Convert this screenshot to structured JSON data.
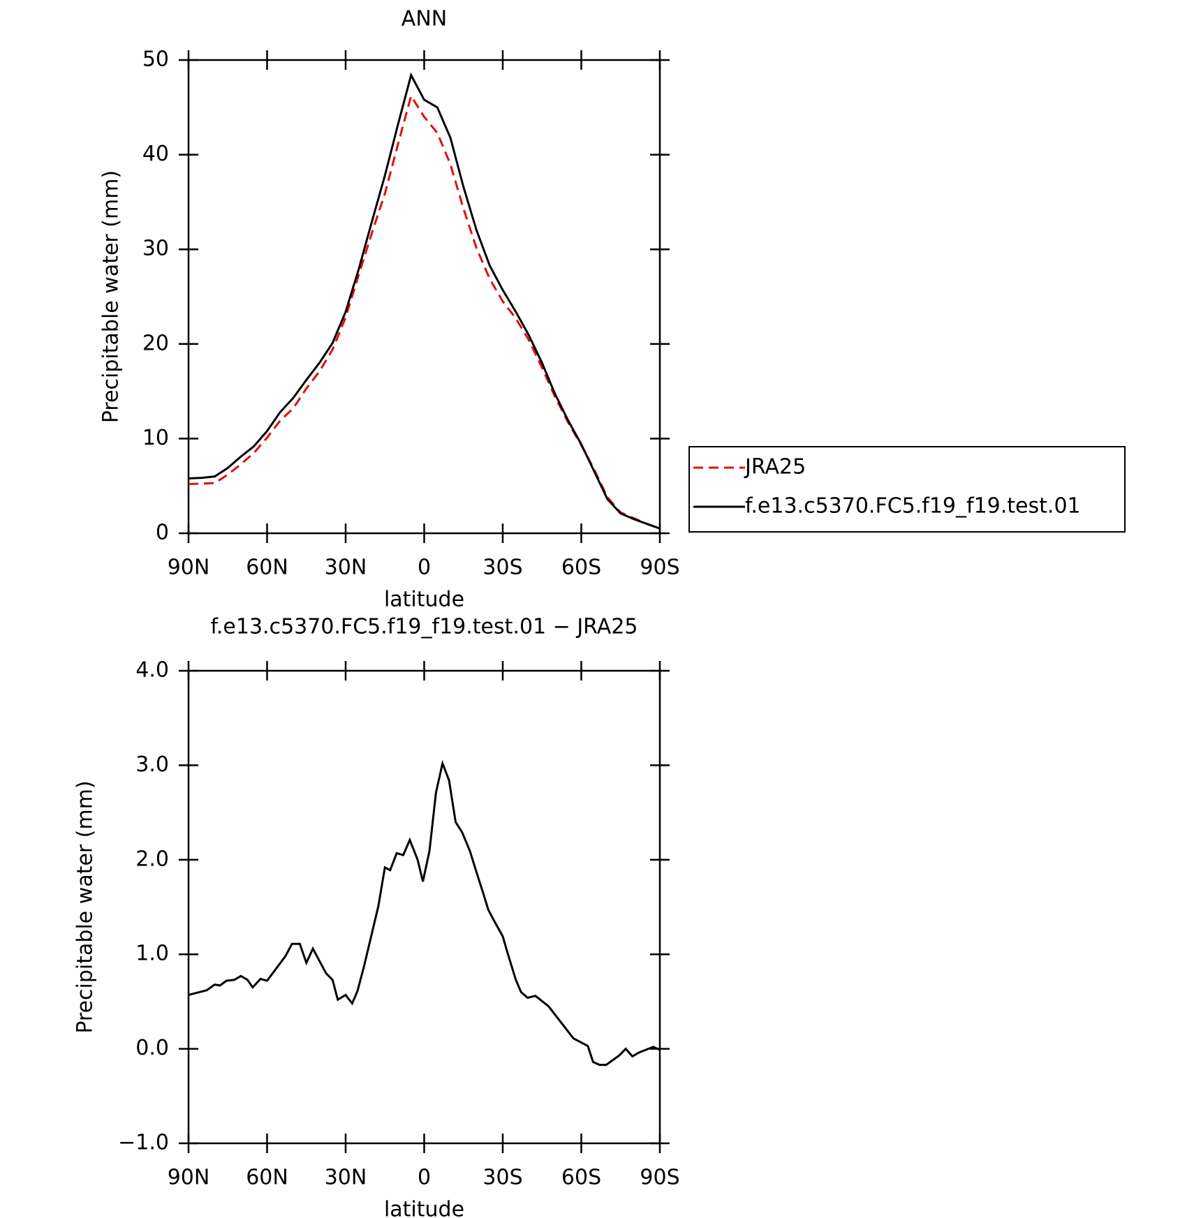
{
  "chart_data": [
    {
      "type": "line",
      "title": "ANN",
      "xlabel": "latitude",
      "ylabel": "Precipitable water (mm)",
      "x": [
        90,
        85,
        80,
        75,
        70,
        65,
        60,
        55,
        50,
        45,
        40,
        35,
        30,
        25,
        20,
        15,
        10,
        5,
        0,
        -5,
        -10,
        -15,
        -20,
        -25,
        -30,
        -35,
        -40,
        -45,
        -50,
        -55,
        -60,
        -65,
        -70,
        -75,
        -80,
        -85,
        -90
      ],
      "series": [
        {
          "name": "JRA25",
          "color": "#e01010",
          "dash": true,
          "values": [
            5.2,
            5.25,
            5.3,
            6.2,
            7.3,
            8.5,
            10.1,
            11.9,
            13.2,
            15.3,
            17.1,
            19.4,
            22.8,
            27.3,
            31.7,
            35.9,
            41.1,
            46.2,
            44.0,
            42.3,
            39.0,
            34.3,
            30.1,
            26.9,
            24.5,
            22.7,
            20.4,
            17.5,
            14.4,
            11.7,
            9.3,
            6.7,
            3.8,
            2.2,
            1.6,
            1.0,
            0.5
          ]
        },
        {
          "name": "f.e13.c5370.FC5.f19_f19.test.01",
          "color": "#000000",
          "dash": false,
          "values": [
            5.8,
            5.85,
            6.0,
            6.9,
            8.1,
            9.2,
            10.8,
            12.8,
            14.3,
            16.2,
            18.0,
            20.1,
            23.4,
            27.9,
            32.9,
            37.8,
            43.2,
            48.4,
            45.8,
            45.0,
            41.8,
            36.6,
            32.0,
            28.3,
            25.7,
            23.4,
            20.9,
            18.0,
            14.7,
            11.9,
            9.4,
            6.5,
            3.6,
            2.1,
            1.5,
            1.0,
            0.5
          ]
        }
      ],
      "xlim": [
        90,
        -90
      ],
      "xticks": [
        {
          "value": 90,
          "label": "90N"
        },
        {
          "value": 60,
          "label": "60N"
        },
        {
          "value": 30,
          "label": "30N"
        },
        0,
        {
          "value": -30,
          "label": "30S"
        },
        {
          "value": -60,
          "label": "60S"
        },
        {
          "value": -90,
          "label": "90S"
        }
      ],
      "ylim": [
        0,
        50
      ],
      "yticks": [
        0,
        10,
        20,
        30,
        40,
        50
      ],
      "legend": "right"
    },
    {
      "type": "line",
      "title": "f.e13.c5370.FC5.f19_f19.test.01 − JRA25",
      "xlabel": "latitude",
      "ylabel": "Precipitable water (mm)",
      "x": [
        90,
        83,
        80,
        78,
        75.5,
        72.5,
        70,
        67.5,
        65.5,
        62.5,
        60,
        53,
        50.5,
        47.5,
        45,
        42.5,
        37.5,
        35,
        33,
        30,
        27.5,
        25.5,
        23,
        17.5,
        15,
        13,
        10.5,
        8,
        5.5,
        2.5,
        0.5,
        -2,
        -4.5,
        -7,
        -9.5,
        -12,
        -14.5,
        -17.5,
        -19.5,
        -22.5,
        -24.5,
        -27,
        -30,
        -32,
        -35,
        -37,
        -39.5,
        -42.5,
        -47.5,
        -57,
        -62.5,
        -64.5,
        -67,
        -69.5,
        -74.5,
        -77,
        -79.5,
        -82,
        -87.5,
        -90
      ],
      "values": [
        0.57,
        0.62,
        0.68,
        0.67,
        0.72,
        0.73,
        0.77,
        0.73,
        0.65,
        0.74,
        0.72,
        0.98,
        1.11,
        1.11,
        0.91,
        1.06,
        0.8,
        0.73,
        0.52,
        0.57,
        0.48,
        0.61,
        0.87,
        1.51,
        1.92,
        1.89,
        2.07,
        2.05,
        2.21,
        2.0,
        1.77,
        2.09,
        2.71,
        3.02,
        2.84,
        2.4,
        2.29,
        2.09,
        1.91,
        1.65,
        1.47,
        1.34,
        1.19,
        1.0,
        0.73,
        0.6,
        0.54,
        0.56,
        0.45,
        0.11,
        0.03,
        -0.14,
        -0.17,
        -0.17,
        -0.07,
        0.0,
        -0.08,
        -0.04,
        0.02,
        -0.01
      ],
      "color": "#000000",
      "xlim": [
        90,
        -90
      ],
      "xticks": [
        {
          "value": 90,
          "label": "90N"
        },
        {
          "value": 60,
          "label": "60N"
        },
        {
          "value": 30,
          "label": "30N"
        },
        0,
        {
          "value": -30,
          "label": "30S"
        },
        {
          "value": -60,
          "label": "60S"
        },
        {
          "value": -90,
          "label": "90S"
        }
      ],
      "ylim": [
        -1,
        4
      ],
      "yticks": [
        {
          "value": -1,
          "label": "−1.0"
        },
        {
          "value": 0,
          "label": "0.0"
        },
        {
          "value": 1,
          "label": "1.0"
        },
        {
          "value": 2,
          "label": "2.0"
        },
        {
          "value": 3,
          "label": "3.0"
        },
        {
          "value": 4,
          "label": "4.0"
        }
      ]
    }
  ]
}
